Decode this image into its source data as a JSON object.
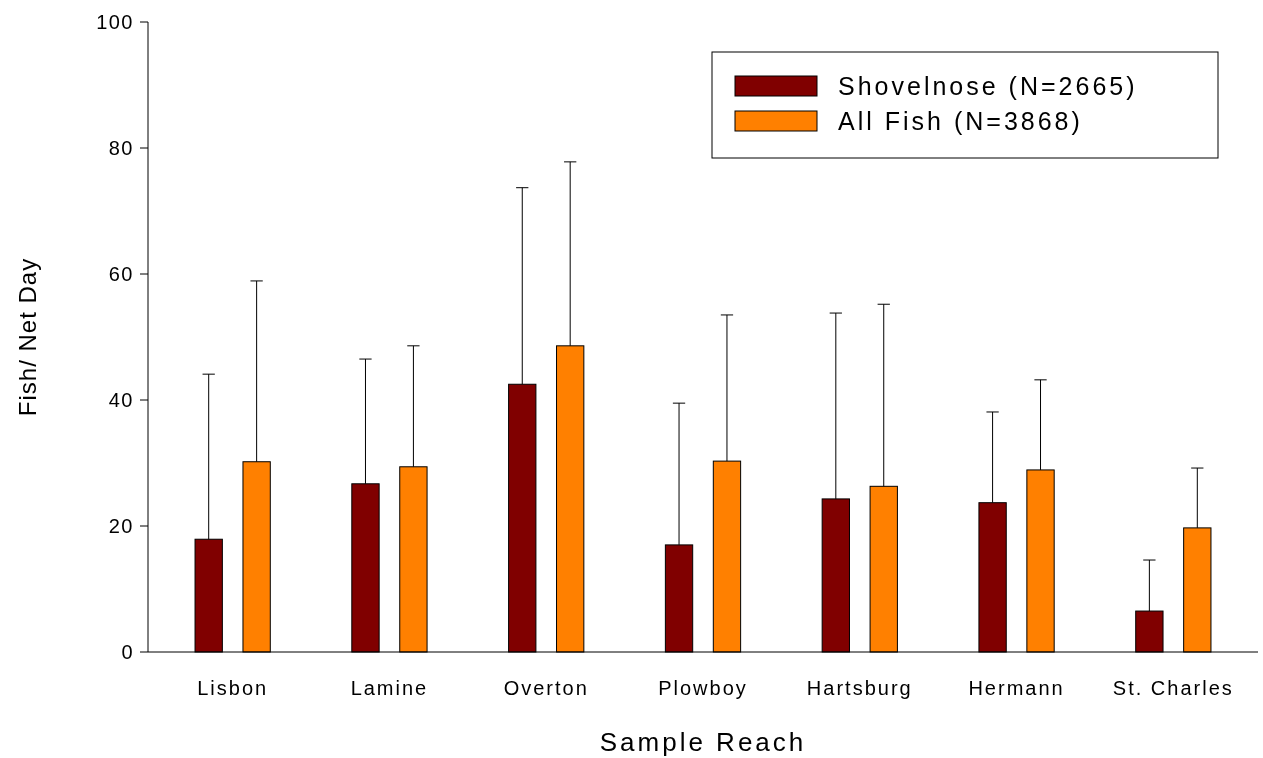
{
  "chart_data": {
    "type": "bar",
    "xlabel": "Sample Reach",
    "ylabel": "Fish/ Net Day",
    "categories": [
      "Lisbon",
      "Lamine",
      "Overton",
      "Plowboy",
      "Hartsburg",
      "Hermann",
      "St. Charles"
    ],
    "series": [
      {
        "name": "Shovelnose (N=2665)",
        "color": "#800000",
        "values": [
          17.9,
          26.7,
          42.5,
          17.0,
          24.3,
          23.7,
          6.5
        ],
        "errors": [
          [
            17.9,
            44.1
          ],
          [
            26.7,
            46.5
          ],
          [
            42.5,
            73.7
          ],
          [
            17.0,
            39.5
          ],
          [
            24.3,
            53.8
          ],
          [
            23.7,
            38.1
          ],
          [
            6.5,
            14.6
          ]
        ]
      },
      {
        "name": "All Fish (N=3868)",
        "color": "#ff8000",
        "values": [
          30.2,
          29.4,
          48.6,
          30.3,
          26.3,
          28.9,
          19.7
        ],
        "errors": [
          [
            30.2,
            58.9
          ],
          [
            29.4,
            48.6
          ],
          [
            48.6,
            77.8
          ],
          [
            30.3,
            53.5
          ],
          [
            26.3,
            55.2
          ],
          [
            28.9,
            43.2
          ],
          [
            19.7,
            29.2
          ]
        ]
      }
    ],
    "ylim": [
      0,
      100
    ],
    "yticks": [
      0,
      20,
      40,
      60,
      80,
      100
    ],
    "grid": false,
    "legend": "top right"
  }
}
